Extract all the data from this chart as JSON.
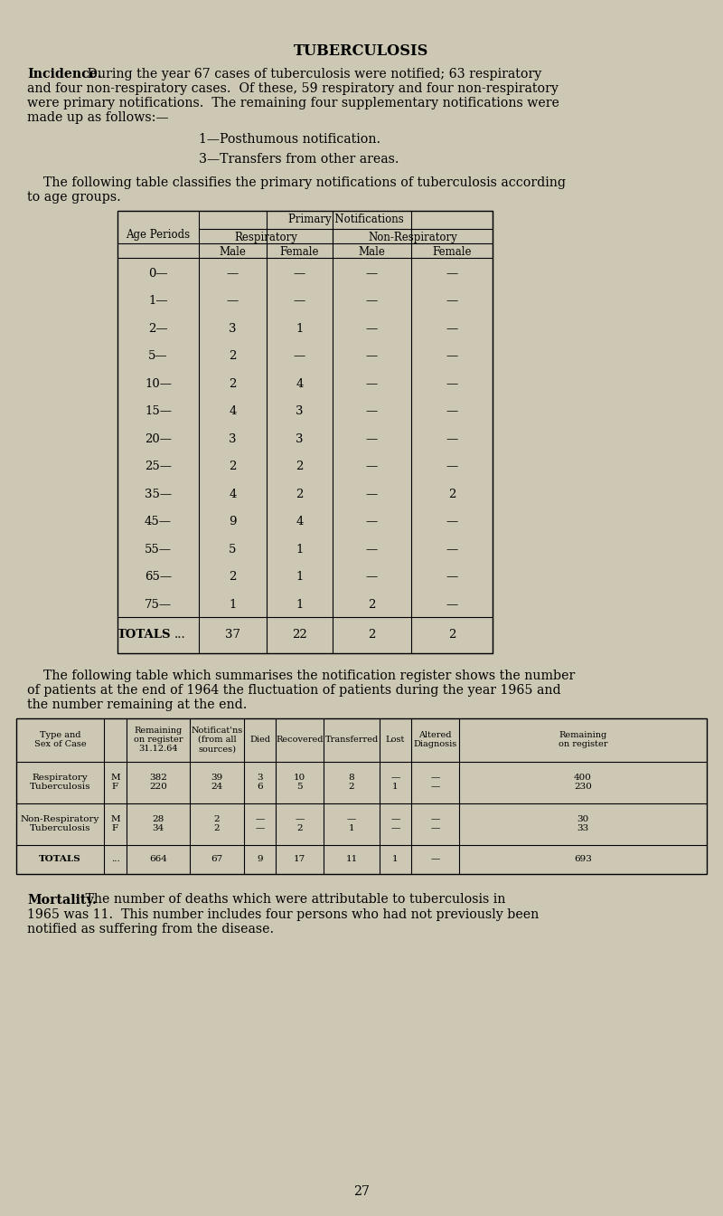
{
  "bg_color": "#cdc8b4",
  "title": "TUBERCULOSIS",
  "para1_bold": "Incidence.",
  "para1_rest": " During the year 67 cases of tuberculosis were notified; 63 respiratory",
  "para1_line2": "and four non-respiratory cases.  Of these, 59 respiratory and four non-respiratory",
  "para1_line3": "were primary notifications.  The remaining four supplementary notifications were",
  "para1_line4": "made up as follows:—",
  "list_item1": "1—Posthumous notification.",
  "list_item2": "3—Transfers from other areas.",
  "para2_line1": "    The following table classifies the primary notifications of tuberculosis according",
  "para2_line2": "to age groups.",
  "table1_header_top": "Primary Notifications",
  "table1_header_sub1": "Respiratory",
  "table1_header_sub2": "Non-Respiratory",
  "table1_col_header": "Age Periods",
  "table1_sub_cols": [
    "Male",
    "Female",
    "Male",
    "Female"
  ],
  "table1_rows": [
    [
      "0—",
      "—",
      "—",
      "—",
      "—"
    ],
    [
      "1—",
      "—",
      "—",
      "—",
      "—"
    ],
    [
      "2—",
      "3",
      "1",
      "—",
      "—"
    ],
    [
      "5—",
      "2",
      "—",
      "—",
      "—"
    ],
    [
      "10—",
      "2",
      "4",
      "—",
      "—"
    ],
    [
      "15—",
      "4",
      "3",
      "—",
      "—"
    ],
    [
      "20—",
      "3",
      "3",
      "—",
      "—"
    ],
    [
      "25—",
      "2",
      "2",
      "—",
      "—"
    ],
    [
      "35—",
      "4",
      "2",
      "—",
      "2"
    ],
    [
      "45—",
      "9",
      "4",
      "—",
      "—"
    ],
    [
      "55—",
      "5",
      "1",
      "—",
      "—"
    ],
    [
      "65—",
      "2",
      "1",
      "—",
      "—"
    ],
    [
      "75—",
      "1",
      "1",
      "2",
      "—"
    ]
  ],
  "table1_totals": [
    "TOTALS",
    "...",
    "37",
    "22",
    "2",
    "2"
  ],
  "para3_line1": "    The following table which summarises the notification register shows the number",
  "para3_line2": "of patients at the end of 1964 the fluctuation of patients during the year 1965 and",
  "para3_line3": "the number remaining at the end.",
  "table2_col_headers": [
    "Type and\nSex of Case",
    "",
    "Remaining\non register\n31.12.64",
    "Notificat'ns\n(from all\nsources)",
    "Died",
    "Recovered",
    "Transferred",
    "Lost",
    "Altered\nDiagnosis",
    "Remaining\non register"
  ],
  "table2_rows": [
    [
      "Respiratory\nTuberculosis",
      "M\nF",
      "382\n220",
      "39\n24",
      "3\n6",
      "10\n5",
      "8\n2",
      "—\n1",
      "—\n—",
      "400\n230"
    ],
    [
      "Non-Respiratory\nTuberculosis",
      "M\nF",
      "28\n34",
      "2\n2",
      "—\n—",
      "—\n2",
      "—\n1",
      "—\n—",
      "—\n—",
      "30\n33"
    ],
    [
      "TOTALS",
      "...",
      "664",
      "67",
      "9",
      "17",
      "11",
      "1",
      "—",
      "693"
    ]
  ],
  "para4_bold": "Mortality.",
  "para4_rest": " The number of deaths which were attributable to tuberculosis in",
  "para4_line2": "1965 was 11.  This number includes four persons who had not previously been",
  "para4_line3": "notified as suffering from the disease.",
  "page_number": "27",
  "lmargin": 30,
  "rmargin": 770,
  "fsize": 10.2
}
